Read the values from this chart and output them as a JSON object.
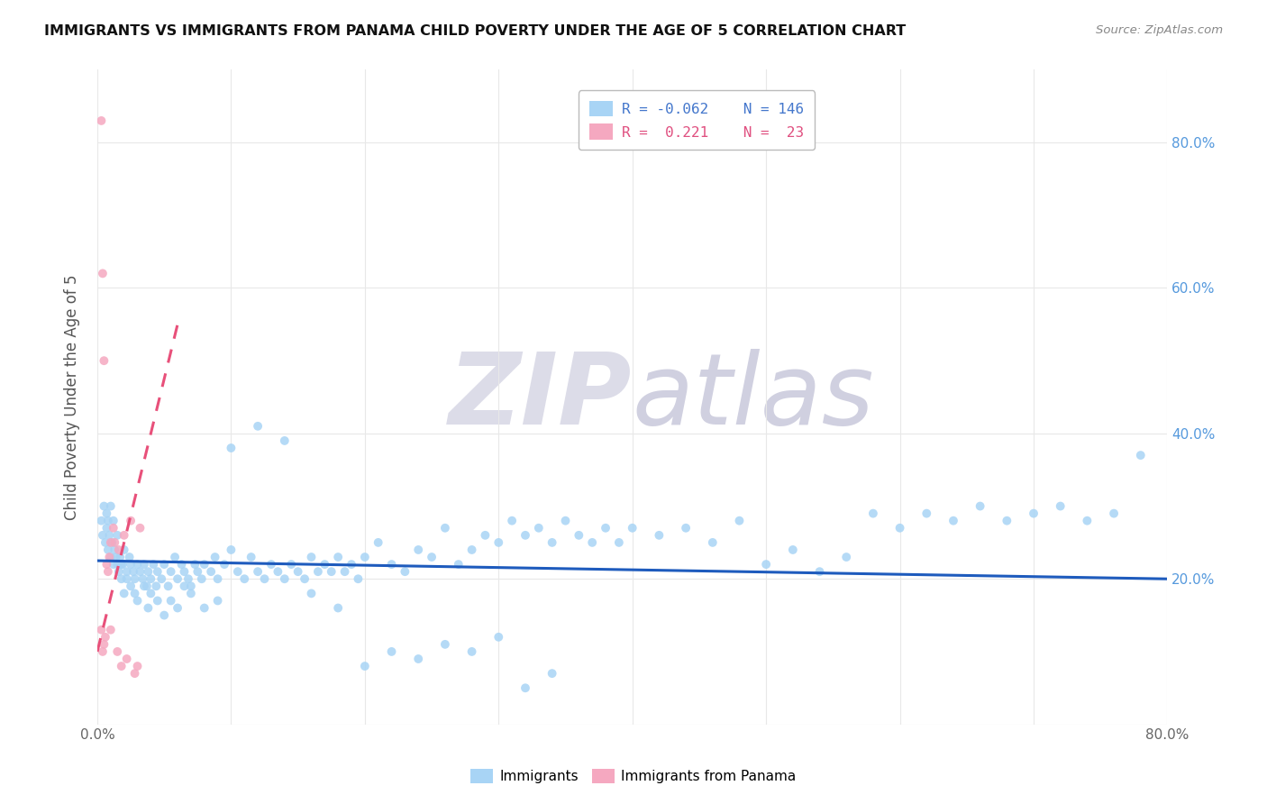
{
  "title": "IMMIGRANTS VS IMMIGRANTS FROM PANAMA CHILD POVERTY UNDER THE AGE OF 5 CORRELATION CHART",
  "source": "Source: ZipAtlas.com",
  "ylabel": "Child Poverty Under the Age of 5",
  "x_min": 0.0,
  "x_max": 0.8,
  "y_min": 0.0,
  "y_max": 0.9,
  "color_blue": "#A8D4F5",
  "color_pink": "#F5A8C0",
  "trendline_blue_color": "#1E5BBD",
  "trendline_pink_color": "#E8507A",
  "watermark_zip": "ZIP",
  "watermark_atlas": "atlas",
  "watermark_color": "#DCDCE8",
  "blue_scatter_x": [
    0.003,
    0.004,
    0.005,
    0.006,
    0.007,
    0.008,
    0.009,
    0.01,
    0.011,
    0.012,
    0.013,
    0.014,
    0.015,
    0.016,
    0.017,
    0.018,
    0.019,
    0.02,
    0.022,
    0.024,
    0.025,
    0.027,
    0.028,
    0.03,
    0.032,
    0.034,
    0.035,
    0.037,
    0.038,
    0.04,
    0.042,
    0.044,
    0.045,
    0.048,
    0.05,
    0.053,
    0.055,
    0.058,
    0.06,
    0.063,
    0.065,
    0.068,
    0.07,
    0.073,
    0.075,
    0.078,
    0.08,
    0.085,
    0.088,
    0.09,
    0.095,
    0.1,
    0.105,
    0.11,
    0.115,
    0.12,
    0.125,
    0.13,
    0.135,
    0.14,
    0.145,
    0.15,
    0.155,
    0.16,
    0.165,
    0.17,
    0.175,
    0.18,
    0.185,
    0.19,
    0.195,
    0.2,
    0.21,
    0.22,
    0.23,
    0.24,
    0.25,
    0.26,
    0.27,
    0.28,
    0.29,
    0.3,
    0.31,
    0.32,
    0.33,
    0.34,
    0.35,
    0.36,
    0.37,
    0.38,
    0.39,
    0.4,
    0.42,
    0.44,
    0.46,
    0.48,
    0.5,
    0.52,
    0.54,
    0.56,
    0.58,
    0.6,
    0.62,
    0.64,
    0.66,
    0.68,
    0.7,
    0.72,
    0.74,
    0.76,
    0.78,
    0.007,
    0.008,
    0.01,
    0.012,
    0.015,
    0.018,
    0.02,
    0.022,
    0.025,
    0.028,
    0.03,
    0.035,
    0.038,
    0.04,
    0.045,
    0.05,
    0.055,
    0.06,
    0.065,
    0.07,
    0.08,
    0.09,
    0.1,
    0.12,
    0.14,
    0.16,
    0.18,
    0.2,
    0.22,
    0.24,
    0.26,
    0.28,
    0.3,
    0.32,
    0.34
  ],
  "blue_scatter_y": [
    0.28,
    0.26,
    0.3,
    0.25,
    0.27,
    0.24,
    0.26,
    0.23,
    0.25,
    0.22,
    0.24,
    0.23,
    0.22,
    0.21,
    0.23,
    0.2,
    0.22,
    0.24,
    0.21,
    0.23,
    0.22,
    0.21,
    0.2,
    0.22,
    0.21,
    0.2,
    0.22,
    0.19,
    0.21,
    0.2,
    0.22,
    0.19,
    0.21,
    0.2,
    0.22,
    0.19,
    0.21,
    0.23,
    0.2,
    0.22,
    0.21,
    0.2,
    0.19,
    0.22,
    0.21,
    0.2,
    0.22,
    0.21,
    0.23,
    0.2,
    0.22,
    0.24,
    0.21,
    0.2,
    0.23,
    0.21,
    0.2,
    0.22,
    0.21,
    0.2,
    0.22,
    0.21,
    0.2,
    0.23,
    0.21,
    0.22,
    0.21,
    0.23,
    0.21,
    0.22,
    0.2,
    0.23,
    0.25,
    0.22,
    0.21,
    0.24,
    0.23,
    0.27,
    0.22,
    0.24,
    0.26,
    0.25,
    0.28,
    0.26,
    0.27,
    0.25,
    0.28,
    0.26,
    0.25,
    0.27,
    0.25,
    0.27,
    0.26,
    0.27,
    0.25,
    0.28,
    0.22,
    0.24,
    0.21,
    0.23,
    0.29,
    0.27,
    0.29,
    0.28,
    0.3,
    0.28,
    0.29,
    0.3,
    0.28,
    0.29,
    0.37,
    0.29,
    0.28,
    0.3,
    0.28,
    0.26,
    0.22,
    0.18,
    0.2,
    0.19,
    0.18,
    0.17,
    0.19,
    0.16,
    0.18,
    0.17,
    0.15,
    0.17,
    0.16,
    0.19,
    0.18,
    0.16,
    0.17,
    0.38,
    0.41,
    0.39,
    0.18,
    0.16,
    0.08,
    0.1,
    0.09,
    0.11,
    0.1,
    0.12,
    0.05,
    0.07
  ],
  "pink_scatter_x": [
    0.003,
    0.003,
    0.004,
    0.004,
    0.005,
    0.005,
    0.006,
    0.007,
    0.008,
    0.009,
    0.01,
    0.01,
    0.012,
    0.013,
    0.015,
    0.016,
    0.018,
    0.02,
    0.022,
    0.025,
    0.028,
    0.03,
    0.032
  ],
  "pink_scatter_y": [
    0.83,
    0.13,
    0.62,
    0.1,
    0.5,
    0.11,
    0.12,
    0.22,
    0.21,
    0.23,
    0.25,
    0.13,
    0.27,
    0.25,
    0.1,
    0.24,
    0.08,
    0.26,
    0.09,
    0.28,
    0.07,
    0.08,
    0.27
  ],
  "blue_trendline_x0": 0.0,
  "blue_trendline_x1": 0.8,
  "blue_trendline_y0": 0.225,
  "blue_trendline_y1": 0.2,
  "pink_trendline_x0": 0.0,
  "pink_trendline_x1": 0.06,
  "pink_trendline_y0": 0.1,
  "pink_trendline_y1": 0.55
}
